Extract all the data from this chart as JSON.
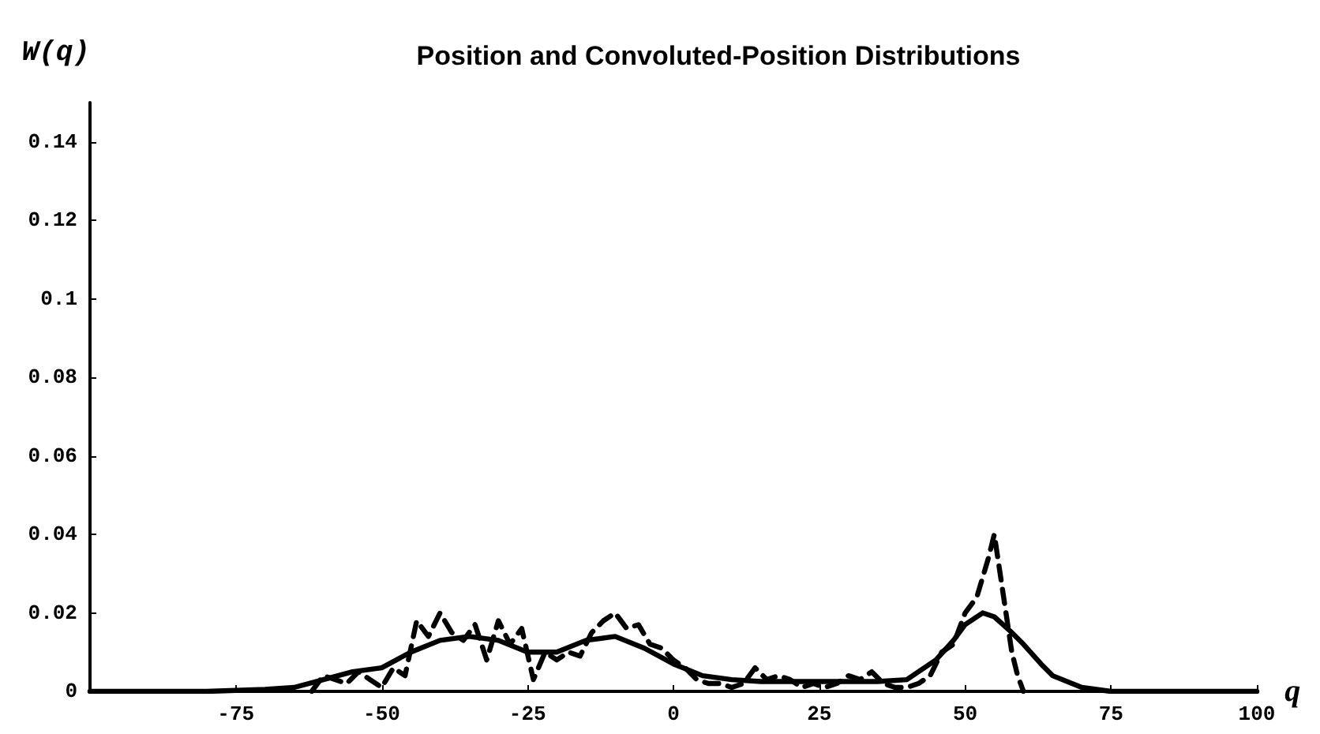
{
  "chart_data": {
    "type": "line",
    "title": "Position and Convoluted-Position Distributions",
    "xlabel": "q",
    "ylabel": "W(q)",
    "xlim": [
      -100,
      100
    ],
    "xticks": [
      -75,
      -50,
      -25,
      0,
      25,
      50,
      75,
      100
    ],
    "ylim": [
      0,
      0.15
    ],
    "yticks": [
      0,
      0.02,
      0.04,
      0.06,
      0.08,
      0.1,
      0.12,
      0.14
    ],
    "grid": false,
    "marker": "none",
    "series": [
      {
        "color": "#000000",
        "line_style": "dashed",
        "x": [
          -62,
          -60,
          -58,
          -56,
          -54,
          -52,
          -50,
          -48,
          -46,
          -44,
          -42,
          -40,
          -38,
          -36,
          -34,
          -32,
          -30,
          -28,
          -26,
          -24,
          -22,
          -20,
          -18,
          -16,
          -14,
          -12,
          -10,
          -8,
          -6,
          -4,
          -2,
          0,
          2,
          4,
          6,
          8,
          10,
          12,
          14,
          16,
          18,
          20,
          22,
          24,
          26,
          28,
          30,
          32,
          34,
          36,
          38,
          40,
          42,
          44,
          46,
          48,
          50,
          52,
          54,
          55,
          56,
          57,
          58,
          59,
          60
        ],
        "values": [
          0,
          0.004,
          0.003,
          0.002,
          0.005,
          0.003,
          0.001,
          0.006,
          0.004,
          0.018,
          0.014,
          0.02,
          0.015,
          0.013,
          0.017,
          0.008,
          0.018,
          0.012,
          0.016,
          0.003,
          0.01,
          0.008,
          0.01,
          0.009,
          0.015,
          0.018,
          0.02,
          0.016,
          0.017,
          0.012,
          0.011,
          0.008,
          0.006,
          0.003,
          0.002,
          0.002,
          0.001,
          0.002,
          0.006,
          0.003,
          0.004,
          0.003,
          0.001,
          0.002,
          0.001,
          0.002,
          0.004,
          0.003,
          0.005,
          0.002,
          0.001,
          0.001,
          0.002,
          0.004,
          0.01,
          0.012,
          0.02,
          0.024,
          0.034,
          0.04,
          0.03,
          0.02,
          0.01,
          0.004,
          0
        ]
      },
      {
        "color": "#000000",
        "line_style": "solid",
        "x": [
          -100,
          -80,
          -70,
          -65,
          -60,
          -55,
          -50,
          -45,
          -40,
          -35,
          -30,
          -25,
          -20,
          -15,
          -10,
          -5,
          0,
          5,
          10,
          15,
          20,
          25,
          30,
          35,
          40,
          45,
          48,
          50,
          53,
          55,
          58,
          60,
          63,
          65,
          70,
          75,
          100
        ],
        "values": [
          0,
          0,
          0.0005,
          0.001,
          0.003,
          0.005,
          0.006,
          0.01,
          0.013,
          0.014,
          0.013,
          0.01,
          0.01,
          0.013,
          0.014,
          0.011,
          0.007,
          0.004,
          0.003,
          0.0025,
          0.0025,
          0.0025,
          0.0025,
          0.0025,
          0.003,
          0.008,
          0.013,
          0.017,
          0.02,
          0.019,
          0.015,
          0.012,
          0.007,
          0.004,
          0.001,
          0,
          0
        ]
      }
    ]
  }
}
